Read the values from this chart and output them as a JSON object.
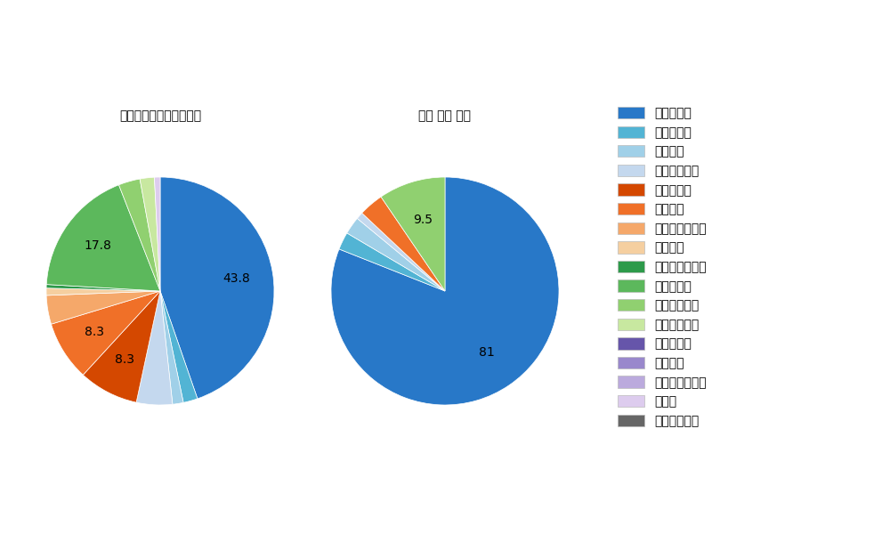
{
  "left_title": "パ・リーグ全プレイヤー",
  "right_title": "寰地 隆成 選手",
  "pitch_types": [
    "ストレート",
    "ツーシーム",
    "シュート",
    "カットボール",
    "スプリット",
    "フォーク",
    "チェンジアップ",
    "シンカー",
    "高速スライダー",
    "スライダー",
    "縦スライダー",
    "パワーカーブ",
    "スクリュー",
    "ナックル",
    "ナックルカーブ",
    "カーブ",
    "スローカーブ"
  ],
  "colors": [
    "#2878C8",
    "#52B4D4",
    "#A0D0E8",
    "#C4D8EE",
    "#D44800",
    "#F07028",
    "#F5A86A",
    "#F5CFA0",
    "#2D9A4A",
    "#5CB85C",
    "#90D070",
    "#C8E8A0",
    "#6655AA",
    "#9988CC",
    "#BBAADD",
    "#DDCCEE",
    "#666666"
  ],
  "left_values": [
    43.8,
    2.0,
    1.5,
    5.0,
    8.3,
    8.3,
    4.0,
    1.0,
    0.5,
    17.8,
    3.0,
    2.0,
    0.0,
    0.0,
    0.0,
    0.8,
    0.0
  ],
  "left_show_labels": [
    true,
    false,
    false,
    false,
    true,
    true,
    false,
    false,
    false,
    true,
    false,
    false,
    false,
    false,
    false,
    false,
    false
  ],
  "left_label_values": [
    43.8,
    0,
    0,
    0,
    8.3,
    8.3,
    0,
    0,
    0,
    17.8,
    0,
    0,
    0,
    0,
    0,
    0,
    0
  ],
  "right_values": [
    81.0,
    2.5,
    2.5,
    1.0,
    0,
    3.5,
    0,
    0,
    0,
    0,
    9.5,
    0,
    0,
    0,
    0,
    0,
    0
  ],
  "right_show_labels": [
    true,
    false,
    false,
    false,
    false,
    false,
    false,
    false,
    false,
    false,
    true,
    false,
    false,
    false,
    false,
    false,
    false
  ],
  "right_label_values": [
    81.0,
    0,
    0,
    0,
    0,
    0,
    0,
    0,
    0,
    0,
    9.5,
    0,
    0,
    0,
    0,
    0,
    0
  ],
  "background_color": "#FFFFFF",
  "label_fontsize": 12,
  "title_fontsize": 13,
  "legend_fontsize": 12
}
